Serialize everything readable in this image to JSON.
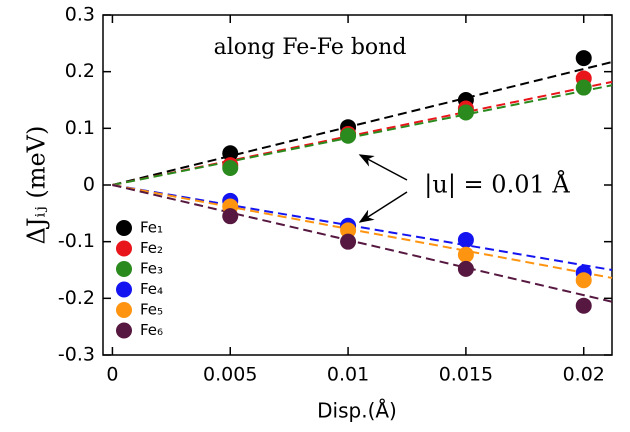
{
  "chart_data": {
    "type": "scatter",
    "annotations": [
      "along Fe-Fe bond",
      "|u| = 0.01 Å"
    ],
    "xlabel": "Disp.(Å)",
    "ylabel": "ΔJᵢⱼ (meV)",
    "x": [
      0.005,
      0.01,
      0.015,
      0.02
    ],
    "fit_x": [
      0,
      0.0212
    ],
    "series": [
      {
        "name": "Fe₁",
        "color": "#000000",
        "values": [
          0.056,
          0.102,
          0.15,
          0.224
        ],
        "fit": [
          0,
          0.217
        ]
      },
      {
        "name": "Fe₂",
        "color": "#e8151b",
        "values": [
          0.035,
          0.09,
          0.135,
          0.188
        ],
        "fit": [
          0,
          0.182
        ]
      },
      {
        "name": "Fe₃",
        "color": "#2a8a1e",
        "values": [
          0.03,
          0.087,
          0.128,
          0.172
        ],
        "fit": [
          0,
          0.176
        ]
      },
      {
        "name": "Fe₄",
        "color": "#1414f0",
        "values": [
          -0.028,
          -0.072,
          -0.097,
          -0.155
        ],
        "fit": [
          0,
          -0.15
        ]
      },
      {
        "name": "Fe₅",
        "color": "#ff9410",
        "values": [
          -0.038,
          -0.08,
          -0.123,
          -0.168
        ],
        "fit": [
          0,
          -0.164
        ]
      },
      {
        "name": "Fe₆",
        "color": "#561840",
        "values": [
          -0.055,
          -0.1,
          -0.148,
          -0.213
        ],
        "fit": [
          0,
          -0.206
        ]
      }
    ],
    "xlim": [
      -0.0004,
      0.0212
    ],
    "xticks": [
      0,
      0.005,
      0.01,
      0.015,
      0.02
    ],
    "ylim": [
      -0.3,
      0.3
    ],
    "yticks": [
      0.3,
      0.2,
      0.1,
      0,
      -0.1,
      -0.2,
      -0.3
    ]
  }
}
